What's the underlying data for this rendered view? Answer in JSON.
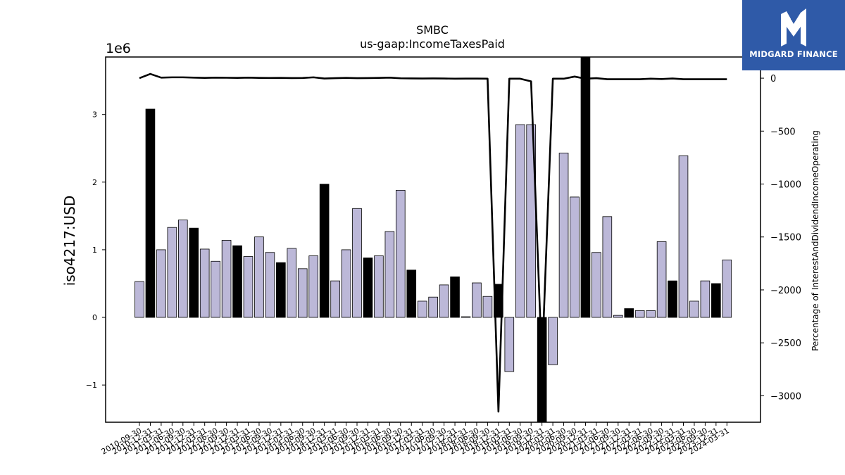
{
  "chart_data": {
    "type": "bar+line",
    "title": "SMBC",
    "subtitle": "us-gaap:IncomeTaxesPaid",
    "ylabel": "iso4217:USD",
    "y2label": "Percentage of InterestAndDividendIncomeOperating",
    "offset_label": "1e6",
    "ylim": [
      -1.55,
      3.85
    ],
    "y2lim": [
      -3250,
      200
    ],
    "yticks": [
      -1,
      0,
      1,
      2,
      3
    ],
    "y2ticks": [
      0,
      -500,
      -1000,
      -1500,
      -2000,
      -2500,
      -3000
    ],
    "colors": {
      "bar_light": "#bcb8d8",
      "bar_dark": "#000000",
      "line": "#000000"
    },
    "categories": [
      "2010-09-30",
      "2010-12-31",
      "2011-03-31",
      "2011-06-30",
      "2011-09-30",
      "2011-12-31",
      "2012-03-31",
      "2012-06-30",
      "2012-09-30",
      "2012-12-31",
      "2013-03-31",
      "2013-06-30",
      "2013-09-30",
      "2013-12-31",
      "2014-03-31",
      "2014-06-30",
      "2014-09-30",
      "2014-12-31",
      "2015-03-31",
      "2015-06-30",
      "2015-09-30",
      "2015-12-31",
      "2016-03-31",
      "2016-06-30",
      "2016-09-30",
      "2016-12-31",
      "2017-03-31",
      "2017-06-30",
      "2017-09-30",
      "2017-12-31",
      "2018-03-31",
      "2018-06-30",
      "2018-09-30",
      "2018-12-31",
      "2019-03-31",
      "2019-06-30",
      "2019-09-30",
      "2019-12-31",
      "2020-03-31",
      "2020-06-30",
      "2020-09-30",
      "2020-12-31",
      "2021-03-31",
      "2021-06-30",
      "2021-09-30",
      "2021-12-31",
      "2022-03-31",
      "2022-06-30",
      "2022-09-30",
      "2022-12-31",
      "2023-03-31",
      "2023-06-30",
      "2023-09-30",
      "2023-12-31",
      "2024-03-31"
    ],
    "values": [
      0.53,
      3.08,
      1.0,
      1.33,
      1.44,
      1.32,
      1.01,
      0.83,
      1.14,
      1.06,
      0.9,
      1.19,
      0.96,
      0.81,
      1.02,
      0.72,
      0.91,
      1.97,
      0.54,
      1.0,
      1.61,
      0.88,
      0.91,
      1.27,
      1.88,
      0.7,
      0.24,
      0.3,
      0.48,
      0.6,
      0.01,
      0.51,
      0.31,
      0.49,
      -0.8,
      2.85,
      2.85,
      -1.6,
      -0.7,
      2.43,
      1.78,
      3.9,
      0.96,
      1.49,
      0.03,
      0.13,
      0.1,
      0.1,
      1.12,
      0.54,
      2.39,
      0.24,
      0.54,
      0.5,
      0.85
    ],
    "dark_flags": [
      0,
      1,
      0,
      0,
      0,
      1,
      0,
      0,
      0,
      1,
      0,
      0,
      0,
      1,
      0,
      0,
      0,
      1,
      0,
      0,
      0,
      1,
      0,
      0,
      0,
      1,
      0,
      0,
      0,
      1,
      0,
      0,
      0,
      1,
      0,
      0,
      0,
      1,
      0,
      0,
      0,
      1,
      0,
      0,
      0,
      1,
      0,
      0,
      0,
      1,
      0,
      0,
      0,
      1,
      0
    ],
    "line_values": [
      0,
      40,
      5,
      8,
      8,
      5,
      3,
      5,
      4,
      3,
      5,
      3,
      2,
      3,
      1,
      2,
      8,
      -3,
      0,
      3,
      0,
      1,
      3,
      5,
      -1,
      -2,
      -3,
      -2,
      -3,
      -5,
      -4,
      -4,
      -5,
      -3150,
      -5,
      -5,
      -30,
      -2700,
      -5,
      -5,
      15,
      -5,
      0,
      -10,
      -10,
      -10,
      -10,
      -5,
      -8,
      -3,
      -10,
      -10,
      -10,
      -10,
      -10
    ],
    "logo": {
      "text": "MIDGARD FINANCE"
    }
  }
}
